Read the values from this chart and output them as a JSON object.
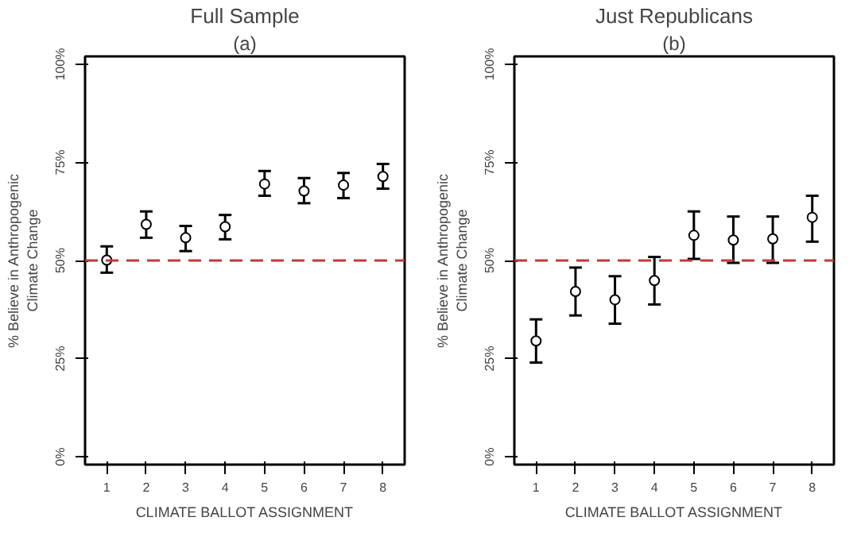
{
  "chart_data": [
    {
      "type": "scatter",
      "title": "Full Sample",
      "subtitle": "(a)",
      "xlabel": "CLIMATE BALLOT ASSIGNMENT",
      "ylabel": "% Believe in Anthropogenic\nClimate Change",
      "x": [
        1,
        2,
        3,
        4,
        5,
        6,
        7,
        8
      ],
      "xlim": [
        0.45,
        8.55
      ],
      "xticks": [
        1,
        2,
        3,
        4,
        5,
        6,
        7,
        8
      ],
      "ylim": [
        -2,
        102
      ],
      "yticks": [
        {
          "value": 0,
          "label": "0%"
        },
        {
          "value": 25,
          "label": "25%"
        },
        {
          "value": 50,
          "label": "50%"
        },
        {
          "value": 75,
          "label": "75%"
        },
        {
          "value": 100,
          "label": "100%"
        }
      ],
      "series": [
        {
          "color": "#000000",
          "values": [
            50.1,
            59.2,
            55.8,
            58.6,
            69.5,
            67.7,
            69.2,
            71.4
          ],
          "errors": [
            [
              46.9,
              53.6
            ],
            [
              55.8,
              62.5
            ],
            [
              52.4,
              58.8
            ],
            [
              55.4,
              61.6
            ],
            [
              66.5,
              72.8
            ],
            [
              64.6,
              71.0
            ],
            [
              65.9,
              72.3
            ],
            [
              68.3,
              74.6
            ]
          ]
        }
      ],
      "marker": "circle",
      "grid": false,
      "ref_lines": [
        {
          "axis": "y",
          "value": 50,
          "color": "#c0393b",
          "line_style": "dashed"
        }
      ]
    },
    {
      "type": "scatter",
      "title": "Just Republicans",
      "subtitle": "(b)",
      "xlabel": "CLIMATE BALLOT ASSIGNMENT",
      "ylabel": "% Believe in Anthropogenic\nClimate Change",
      "x": [
        1,
        2,
        3,
        4,
        5,
        6,
        7,
        8
      ],
      "xlim": [
        0.45,
        8.55
      ],
      "xticks": [
        1,
        2,
        3,
        4,
        5,
        6,
        7,
        8
      ],
      "ylim": [
        -2,
        102
      ],
      "yticks": [
        {
          "value": 0,
          "label": "0%"
        },
        {
          "value": 25,
          "label": "25%"
        },
        {
          "value": 50,
          "label": "50%"
        },
        {
          "value": 75,
          "label": "75%"
        },
        {
          "value": 100,
          "label": "100%"
        }
      ],
      "series": [
        {
          "color": "#000000",
          "values": [
            29.5,
            42.1,
            40.0,
            44.9,
            56.4,
            55.2,
            55.5,
            61.0
          ],
          "errors": [
            [
              24.0,
              35.0
            ],
            [
              36.0,
              48.2
            ],
            [
              33.9,
              46.0
            ],
            [
              38.8,
              50.9
            ],
            [
              50.4,
              62.5
            ],
            [
              49.4,
              61.2
            ],
            [
              49.4,
              61.2
            ],
            [
              54.8,
              66.5
            ]
          ]
        }
      ],
      "marker": "circle",
      "grid": false,
      "ref_lines": [
        {
          "axis": "y",
          "value": 50,
          "color": "#c0393b",
          "line_style": "dashed"
        }
      ]
    }
  ]
}
